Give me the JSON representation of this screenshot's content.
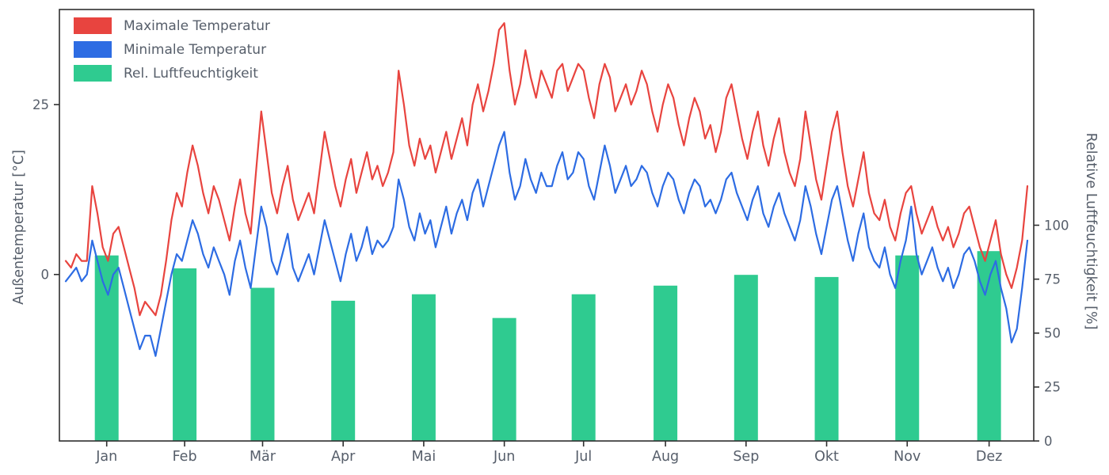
{
  "figure": {
    "background": "#ffffff"
  },
  "chart_data": {
    "type": "line+bar",
    "title": "",
    "legend": {
      "position": "upper left",
      "items": [
        {
          "label": "Maximale Temperatur"
        },
        {
          "label": "Minimale Temperatur"
        },
        {
          "label": "Rel. Luftfeuchtigkeit"
        }
      ]
    },
    "style": {
      "text_color": "#565e6a",
      "spine_color": "#2f2f2f",
      "max_temp_color": "#e8443f",
      "min_temp_color": "#2d6ce3",
      "humidity_color": "#2fcb90"
    },
    "x_axis": {
      "tick_labels": [
        "Jan",
        "Feb",
        "Mär",
        "Apr",
        "Mai",
        "Jun",
        "Jul",
        "Aug",
        "Sep",
        "Okt",
        "Nov",
        "Dez"
      ],
      "month_day_centers": [
        15.5,
        45,
        74.5,
        105,
        135.5,
        166,
        196,
        227,
        257.5,
        288,
        318.5,
        349.5
      ],
      "days_in_year": 365
    },
    "left_axis": {
      "label": "Außentemperatur [°C]",
      "ticks": [
        0,
        25
      ],
      "ylim": [
        -24.5,
        39
      ]
    },
    "right_axis": {
      "label": "Relative Luftfeuchtigkeit [%]",
      "ticks": [
        0,
        25,
        50,
        75,
        100
      ],
      "ylim": [
        0,
        200
      ]
    },
    "series": [
      {
        "name": "Maximale Temperatur",
        "type": "line",
        "axis": "left",
        "x_step_days": 2,
        "values": [
          2,
          1,
          3,
          2,
          2,
          13,
          9,
          4,
          2,
          6,
          7,
          4,
          1,
          -2,
          -6,
          -4,
          -5,
          -6,
          -3,
          2,
          8,
          12,
          10,
          15,
          19,
          16,
          12,
          9,
          13,
          11,
          8,
          5,
          10,
          14,
          9,
          6,
          15,
          24,
          18,
          12,
          9,
          13,
          16,
          11,
          8,
          10,
          12,
          9,
          15,
          21,
          17,
          13,
          10,
          14,
          17,
          12,
          15,
          18,
          14,
          16,
          13,
          15,
          18,
          30,
          25,
          19,
          16,
          20,
          17,
          19,
          15,
          18,
          21,
          17,
          20,
          23,
          19,
          25,
          28,
          24,
          27,
          31,
          36,
          37,
          30,
          25,
          28,
          33,
          29,
          26,
          30,
          28,
          26,
          30,
          31,
          27,
          29,
          31,
          30,
          26,
          23,
          28,
          31,
          29,
          24,
          26,
          28,
          25,
          27,
          30,
          28,
          24,
          21,
          25,
          28,
          26,
          22,
          19,
          23,
          26,
          24,
          20,
          22,
          18,
          21,
          26,
          28,
          24,
          20,
          17,
          21,
          24,
          19,
          16,
          20,
          23,
          18,
          15,
          13,
          17,
          24,
          19,
          14,
          11,
          16,
          21,
          24,
          18,
          13,
          10,
          14,
          18,
          12,
          9,
          8,
          11,
          7,
          5,
          9,
          12,
          13,
          9,
          6,
          8,
          10,
          7,
          5,
          7,
          4,
          6,
          9,
          10,
          7,
          4,
          2,
          5,
          8,
          3,
          0,
          -2,
          1,
          5,
          13
        ]
      },
      {
        "name": "Minimale Temperatur",
        "type": "line",
        "axis": "left",
        "x_step_days": 2,
        "values": [
          -1,
          0,
          1,
          -1,
          0,
          5,
          2,
          -1,
          -3,
          0,
          1,
          -2,
          -5,
          -8,
          -11,
          -9,
          -9,
          -12,
          -8,
          -4,
          0,
          3,
          2,
          5,
          8,
          6,
          3,
          1,
          4,
          2,
          0,
          -3,
          2,
          5,
          1,
          -2,
          4,
          10,
          7,
          2,
          0,
          3,
          6,
          1,
          -1,
          1,
          3,
          0,
          4,
          8,
          5,
          2,
          -1,
          3,
          6,
          2,
          4,
          7,
          3,
          5,
          4,
          5,
          7,
          14,
          11,
          7,
          5,
          9,
          6,
          8,
          4,
          7,
          10,
          6,
          9,
          11,
          8,
          12,
          14,
          10,
          13,
          16,
          19,
          21,
          15,
          11,
          13,
          17,
          14,
          12,
          15,
          13,
          13,
          16,
          18,
          14,
          15,
          18,
          17,
          13,
          11,
          15,
          19,
          16,
          12,
          14,
          16,
          13,
          14,
          16,
          15,
          12,
          10,
          13,
          15,
          14,
          11,
          9,
          12,
          14,
          13,
          10,
          11,
          9,
          11,
          14,
          15,
          12,
          10,
          8,
          11,
          13,
          9,
          7,
          10,
          12,
          9,
          7,
          5,
          8,
          13,
          10,
          6,
          3,
          7,
          11,
          13,
          9,
          5,
          2,
          6,
          9,
          4,
          2,
          1,
          4,
          0,
          -2,
          2,
          5,
          10,
          3,
          0,
          2,
          4,
          1,
          -1,
          1,
          -2,
          0,
          3,
          4,
          2,
          -1,
          -3,
          0,
          2,
          -2,
          -5,
          -10,
          -8,
          -2,
          5
        ]
      },
      {
        "name": "Rel. Luftfeuchtigkeit",
        "type": "bar",
        "axis": "right",
        "categories": [
          "Jan",
          "Feb",
          "Mär",
          "Apr",
          "Mai",
          "Jun",
          "Jul",
          "Aug",
          "Sep",
          "Okt",
          "Nov",
          "Dez"
        ],
        "values": [
          86,
          80,
          71,
          65,
          68,
          57,
          68,
          72,
          77,
          76,
          86,
          88
        ]
      }
    ]
  }
}
